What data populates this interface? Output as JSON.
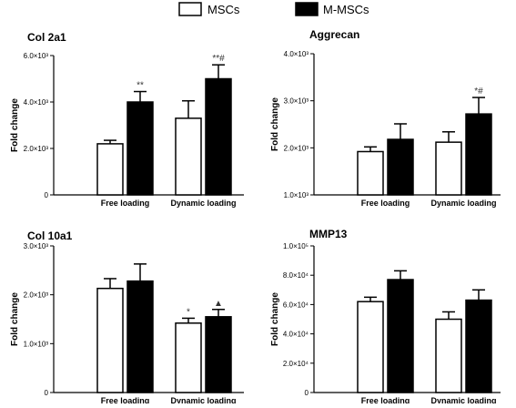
{
  "legend": {
    "items": [
      {
        "label": "MSCs",
        "color": "#ffffff"
      },
      {
        "label": "M-MSCs",
        "color": "#000000"
      }
    ],
    "placement": "top-center"
  },
  "chart_data": [
    {
      "type": "bar",
      "title": "Col 2a1",
      "ylabel": "Fold change",
      "categories": [
        "Free loading",
        "Dynamic loading"
      ],
      "ylim": [
        0,
        6
      ],
      "yticks": [
        0,
        2,
        4,
        6
      ],
      "ytick_labels": [
        "0",
        "2.0×10³",
        "4.0×10³",
        "6.0×10³"
      ],
      "series": [
        {
          "name": "MSCs",
          "values": [
            2.2,
            3.3
          ],
          "errors": [
            0.15,
            0.75
          ]
        },
        {
          "name": "M-MSCs",
          "values": [
            4.0,
            5.0
          ],
          "errors": [
            0.45,
            0.6
          ]
        }
      ],
      "annotations": [
        [
          "",
          "**"
        ],
        [
          "",
          "**#"
        ]
      ]
    },
    {
      "type": "bar",
      "title": "Aggrecan",
      "ylabel": "Fold change",
      "categories": [
        "Free loading",
        "Dynamic loading"
      ],
      "ylim": [
        1,
        4
      ],
      "yticks": [
        1,
        2,
        3,
        4
      ],
      "ytick_labels": [
        "1.0×10³",
        "2.0×10³",
        "3.0×10³",
        "4.0×10³"
      ],
      "series": [
        {
          "name": "MSCs",
          "values": [
            1.92,
            2.12
          ],
          "errors": [
            0.1,
            0.22
          ]
        },
        {
          "name": "M-MSCs",
          "values": [
            2.18,
            2.72
          ],
          "errors": [
            0.33,
            0.35
          ]
        }
      ],
      "annotations": [
        [
          "",
          ""
        ],
        [
          "",
          "*#"
        ]
      ]
    },
    {
      "type": "bar",
      "title": "Col 10a1",
      "ylabel": "Fold change",
      "categories": [
        "Free loading",
        "Dynamic loading"
      ],
      "ylim": [
        0,
        3
      ],
      "yticks": [
        0,
        1,
        2,
        3
      ],
      "ytick_labels": [
        "0",
        "1.0×10³",
        "2.0×10³",
        "3.0×10³"
      ],
      "series": [
        {
          "name": "MSCs",
          "values": [
            2.13,
            1.42
          ],
          "errors": [
            0.2,
            0.1
          ]
        },
        {
          "name": "M-MSCs",
          "values": [
            2.28,
            1.55
          ],
          "errors": [
            0.35,
            0.15
          ]
        }
      ],
      "annotations": [
        [
          "",
          ""
        ],
        [
          "*",
          "▲"
        ]
      ]
    },
    {
      "type": "bar",
      "title": "MMP13",
      "ylabel": "Fold change",
      "categories": [
        "Free loading",
        "Dynamic loading"
      ],
      "ylim": [
        0,
        10
      ],
      "yticks": [
        0,
        2,
        4,
        6,
        8,
        10
      ],
      "ytick_labels": [
        "0",
        "2.0×10⁴",
        "4.0×10⁴",
        "6.0×10⁴",
        "8.0×10⁴",
        "1.0×10⁵"
      ],
      "series": [
        {
          "name": "MSCs",
          "values": [
            6.2,
            5.0
          ],
          "errors": [
            0.3,
            0.5
          ]
        },
        {
          "name": "M-MSCs",
          "values": [
            7.7,
            6.3
          ],
          "errors": [
            0.6,
            0.7
          ]
        }
      ],
      "annotations": [
        [
          "",
          ""
        ],
        [
          "",
          ""
        ]
      ]
    }
  ]
}
